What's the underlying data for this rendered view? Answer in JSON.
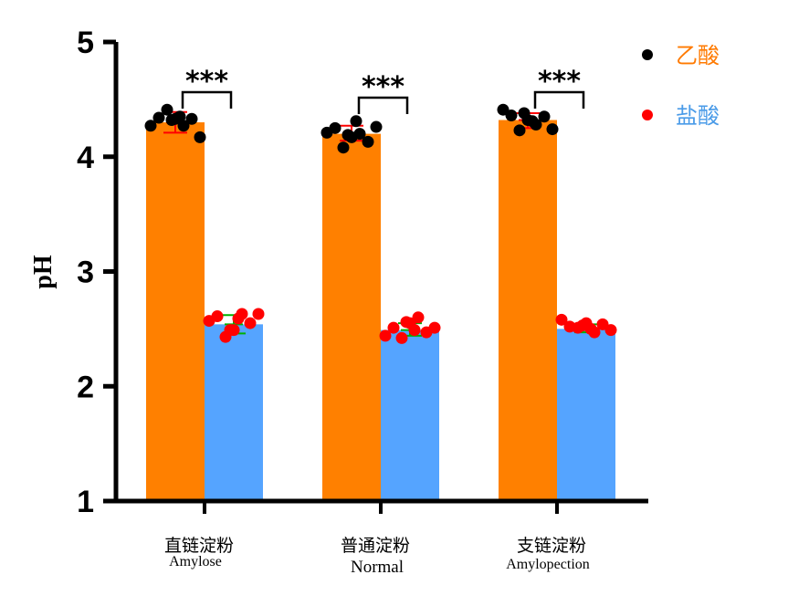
{
  "chart_data": {
    "type": "bar",
    "ylabel": "pH",
    "ylim": [
      1,
      5
    ],
    "yticks": [
      "1",
      "2",
      "3",
      "4",
      "5"
    ],
    "categories": [
      {
        "zh": "直链淀粉",
        "en": "Amylose"
      },
      {
        "zh": "普通淀粉",
        "en": "Normal"
      },
      {
        "zh": "支链淀粉",
        "en": "Amylopection"
      }
    ],
    "series": [
      {
        "name": "乙酸",
        "bar_color": "#FF8000",
        "dot_color": "#000000",
        "values": [
          4.3,
          4.2,
          4.32
        ],
        "error": [
          [
            4.21,
            4.39
          ],
          [
            4.14,
            4.27
          ],
          [
            4.25,
            4.38
          ]
        ],
        "error_color": "#FF0000",
        "points": [
          [
            4.27,
            4.34,
            4.41,
            4.33,
            4.27,
            4.33,
            4.17,
            4.32,
            4.35
          ],
          [
            4.21,
            4.25,
            4.08,
            4.17,
            4.2,
            4.13,
            4.26,
            4.19,
            4.31
          ],
          [
            4.41,
            4.36,
            4.23,
            4.32,
            4.28,
            4.35,
            4.24,
            4.38,
            4.31
          ]
        ]
      },
      {
        "name": "盐酸",
        "bar_color": "#55A4FF",
        "dot_color": "#FF0000",
        "values": [
          2.54,
          2.49,
          2.5
        ],
        "error": [
          [
            2.46,
            2.62
          ],
          [
            2.44,
            2.55
          ],
          [
            2.47,
            2.54
          ]
        ],
        "error_color": "#00B000",
        "points": [
          [
            2.57,
            2.61,
            2.43,
            2.49,
            2.63,
            2.55,
            2.63,
            2.49,
            2.59
          ],
          [
            2.44,
            2.51,
            2.42,
            2.55,
            2.6,
            2.47,
            2.51,
            2.56,
            2.49
          ],
          [
            2.58,
            2.52,
            2.51,
            2.55,
            2.47,
            2.54,
            2.49,
            2.53,
            2.5
          ]
        ]
      }
    ],
    "significance": [
      "***",
      "***",
      "***"
    ],
    "legend": {
      "placement": "top-right",
      "text_colors": [
        "#FF7A00",
        "#4A9BE8"
      ]
    }
  }
}
